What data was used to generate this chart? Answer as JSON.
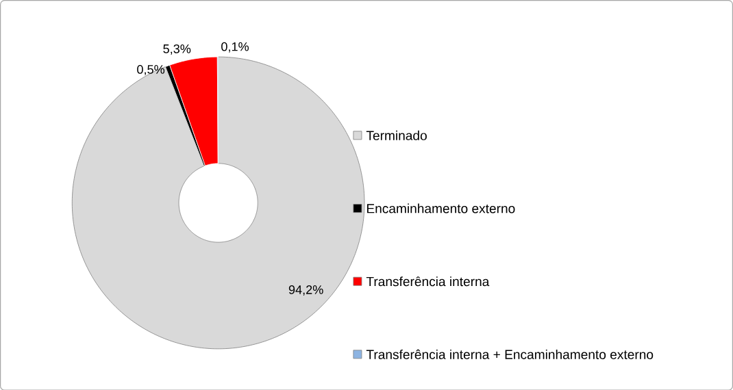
{
  "chart_data": {
    "type": "donut",
    "categories": [
      "Terminado",
      "Encaminhamento externo",
      "Transferência interna",
      "Transferência interna + Encaminhamento externo"
    ],
    "values": [
      94.2,
      0.5,
      5.3,
      0.1
    ],
    "colors": [
      "#d9d9d9",
      "#000000",
      "#ff0000",
      "#8db4e2"
    ],
    "value_labels": [
      "94,2%",
      "0,5%",
      "5,3%",
      "0,1%"
    ],
    "legend": "right"
  }
}
